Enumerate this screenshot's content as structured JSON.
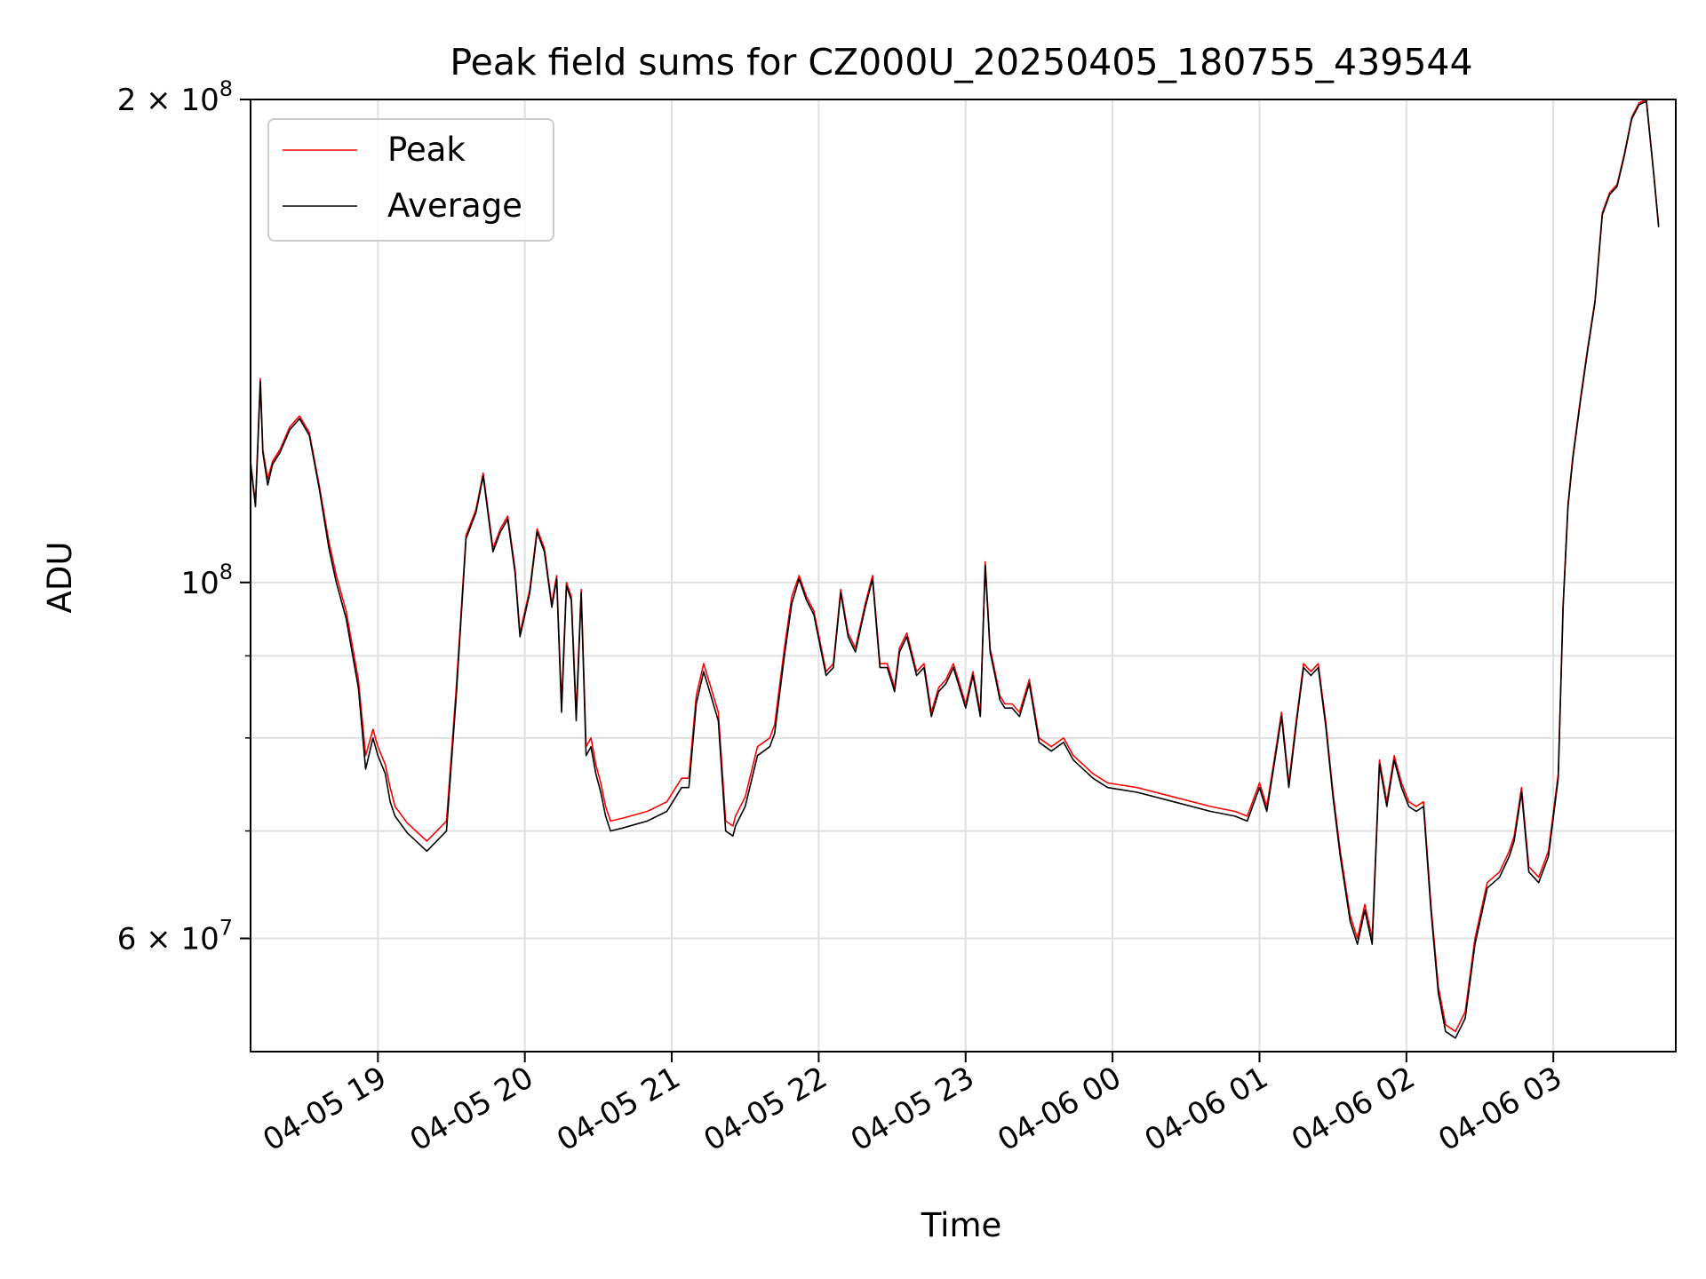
{
  "chart_data": {
    "type": "line",
    "title": "Peak field sums for CZ000U_20250405_180755_439544",
    "xlabel": "Time",
    "ylabel": "ADU",
    "yscale": "log",
    "ylim": [
      51000000,
      200000000
    ],
    "xlim": [
      "2025-04-05 18:08",
      "2025-04-06 03:50"
    ],
    "grid": true,
    "legend": "top-left",
    "x_ticks": [
      {
        "label": "04-05 19",
        "time": "2025-04-05 19:00"
      },
      {
        "label": "04-05 20",
        "time": "2025-04-05 20:00"
      },
      {
        "label": "04-05 21",
        "time": "2025-04-05 21:00"
      },
      {
        "label": "04-05 22",
        "time": "2025-04-05 22:00"
      },
      {
        "label": "04-05 23",
        "time": "2025-04-05 23:00"
      },
      {
        "label": "04-06 00",
        "time": "2025-04-06 00:00"
      },
      {
        "label": "04-06 01",
        "time": "2025-04-06 01:00"
      },
      {
        "label": "04-06 02",
        "time": "2025-04-06 02:00"
      },
      {
        "label": "04-06 03",
        "time": "2025-04-06 03:00"
      }
    ],
    "y_major_ticks": [
      {
        "value": 60000000,
        "mantissa": "6",
        "exponent": "7"
      },
      {
        "value": 100000000,
        "mantissa": "",
        "exponent": "8"
      },
      {
        "value": 200000000,
        "mantissa": "2",
        "exponent": "8"
      }
    ],
    "y_minor_grid": [
      70000000,
      80000000,
      90000000
    ],
    "times": [
      "2025-04-05 18:08",
      "2025-04-05 18:10",
      "2025-04-05 18:12",
      "2025-04-05 18:13",
      "2025-04-05 18:15",
      "2025-04-05 18:17",
      "2025-04-05 18:20",
      "2025-04-05 18:24",
      "2025-04-05 18:28",
      "2025-04-05 18:32",
      "2025-04-05 18:36",
      "2025-04-05 18:40",
      "2025-04-05 18:43",
      "2025-04-05 18:47",
      "2025-04-05 18:52",
      "2025-04-05 18:55",
      "2025-04-05 18:58",
      "2025-04-05 19:00",
      "2025-04-05 19:03",
      "2025-04-05 19:05",
      "2025-04-05 19:07",
      "2025-04-05 19:12",
      "2025-04-05 19:20",
      "2025-04-05 19:28",
      "2025-04-05 19:32",
      "2025-04-05 19:36",
      "2025-04-05 19:40",
      "2025-04-05 19:43",
      "2025-04-05 19:47",
      "2025-04-05 19:50",
      "2025-04-05 19:53",
      "2025-04-05 19:56",
      "2025-04-05 19:58",
      "2025-04-05 20:02",
      "2025-04-05 20:05",
      "2025-04-05 20:08",
      "2025-04-05 20:11",
      "2025-04-05 20:13",
      "2025-04-05 20:15",
      "2025-04-05 20:17",
      "2025-04-05 20:19",
      "2025-04-05 20:21",
      "2025-04-05 20:23",
      "2025-04-05 20:25",
      "2025-04-05 20:27",
      "2025-04-05 20:29",
      "2025-04-05 20:31",
      "2025-04-05 20:33",
      "2025-04-05 20:35",
      "2025-04-05 20:40",
      "2025-04-05 20:50",
      "2025-04-05 20:58",
      "2025-04-05 21:04",
      "2025-04-05 21:07",
      "2025-04-05 21:10",
      "2025-04-05 21:13",
      "2025-04-05 21:16",
      "2025-04-05 21:19",
      "2025-04-05 21:22",
      "2025-04-05 21:25",
      "2025-04-05 21:26",
      "2025-04-05 21:30",
      "2025-04-05 21:35",
      "2025-04-05 21:40",
      "2025-04-05 21:42",
      "2025-04-05 21:46",
      "2025-04-05 21:49",
      "2025-04-05 21:52",
      "2025-04-05 21:55",
      "2025-04-05 21:58",
      "2025-04-05 22:03",
      "2025-04-05 22:06",
      "2025-04-05 22:09",
      "2025-04-05 22:12",
      "2025-04-05 22:15",
      "2025-04-05 22:19",
      "2025-04-05 22:22",
      "2025-04-05 22:25",
      "2025-04-05 22:28",
      "2025-04-05 22:31",
      "2025-04-05 22:33",
      "2025-04-05 22:36",
      "2025-04-05 22:40",
      "2025-04-05 22:43",
      "2025-04-05 22:46",
      "2025-04-05 22:49",
      "2025-04-05 22:52",
      "2025-04-05 22:55",
      "2025-04-05 22:58",
      "2025-04-05 23:00",
      "2025-04-05 23:03",
      "2025-04-05 23:06",
      "2025-04-05 23:08",
      "2025-04-05 23:10",
      "2025-04-05 23:12",
      "2025-04-05 23:14",
      "2025-04-05 23:16",
      "2025-04-05 23:19",
      "2025-04-05 23:22",
      "2025-04-05 23:26",
      "2025-04-05 23:30",
      "2025-04-05 23:35",
      "2025-04-05 23:40",
      "2025-04-05 23:44",
      "2025-04-05 23:48",
      "2025-04-05 23:52",
      "2025-04-05 23:58",
      "2025-04-06 00:10",
      "2025-04-06 00:25",
      "2025-04-06 00:40",
      "2025-04-06 00:50",
      "2025-04-06 00:55",
      "2025-04-06 01:00",
      "2025-04-06 01:03",
      "2025-04-06 01:06",
      "2025-04-06 01:09",
      "2025-04-06 01:12",
      "2025-04-06 01:15",
      "2025-04-06 01:18",
      "2025-04-06 01:21",
      "2025-04-06 01:24",
      "2025-04-06 01:27",
      "2025-04-06 01:30",
      "2025-04-06 01:33",
      "2025-04-06 01:37",
      "2025-04-06 01:40",
      "2025-04-06 01:43",
      "2025-04-06 01:46",
      "2025-04-06 01:49",
      "2025-04-06 01:52",
      "2025-04-06 01:55",
      "2025-04-06 01:58",
      "2025-04-06 02:01",
      "2025-04-06 02:04",
      "2025-04-06 02:07",
      "2025-04-06 02:10",
      "2025-04-06 02:13",
      "2025-04-06 02:16",
      "2025-04-06 02:20",
      "2025-04-06 02:24",
      "2025-04-06 02:28",
      "2025-04-06 02:33",
      "2025-04-06 02:38",
      "2025-04-06 02:42",
      "2025-04-06 02:44",
      "2025-04-06 02:47",
      "2025-04-06 02:50",
      "2025-04-06 02:54",
      "2025-04-06 02:58",
      "2025-04-06 03:02",
      "2025-04-06 03:04",
      "2025-04-06 03:06",
      "2025-04-06 03:08",
      "2025-04-06 03:11",
      "2025-04-06 03:14",
      "2025-04-06 03:17",
      "2025-04-06 03:20",
      "2025-04-06 03:23",
      "2025-04-06 03:26",
      "2025-04-06 03:29",
      "2025-04-06 03:32",
      "2025-04-06 03:35",
      "2025-04-06 03:38",
      "2025-04-06 03:41",
      "2025-04-06 03:43",
      "2025-04-06 03:45",
      "2025-04-06 03:47",
      "2025-04-06 03:50"
    ],
    "series": [
      {
        "name": "Peak",
        "color": "#ff0000",
        "values": [
          119000000,
          112000000,
          134000000,
          121000000,
          116000000,
          119000000,
          121000000,
          125000000,
          127000000,
          124000000,
          115000000,
          106000000,
          101000000,
          96000000,
          87000000,
          78000000,
          81000000,
          79000000,
          77000000,
          74500000,
          72500000,
          70800000,
          69000000,
          71000000,
          86000000,
          107000000,
          111000000,
          117000000,
          105000000,
          108000000,
          110000000,
          102000000,
          93000000,
          99000000,
          108000000,
          105000000,
          97000000,
          101000000,
          84000000,
          100000000,
          98000000,
          83000000,
          99000000,
          79000000,
          80000000,
          77000000,
          75000000,
          72500000,
          71000000,
          71300000,
          72000000,
          73000000,
          75500000,
          75500000,
          85000000,
          89000000,
          86000000,
          83000000,
          71000000,
          70500000,
          71500000,
          73500000,
          79000000,
          80000000,
          81500000,
          91000000,
          98000000,
          101000000,
          98000000,
          96000000,
          88000000,
          89000000,
          99000000,
          93000000,
          91000000,
          97000000,
          101000000,
          89000000,
          89000000,
          86000000,
          91000000,
          93000000,
          88000000,
          89000000,
          83000000,
          86000000,
          87000000,
          89000000,
          86000000,
          84000000,
          88000000,
          83000000,
          103000000,
          91000000,
          88000000,
          85000000,
          84000000,
          84000000,
          83000000,
          87000000,
          80000000,
          79000000,
          80000000,
          78000000,
          77000000,
          76000000,
          75000000,
          74500000,
          73500000,
          72500000,
          72000000,
          71500000,
          75000000,
          72500000,
          77500000,
          83000000,
          75000000,
          82000000,
          89000000,
          88000000,
          89000000,
          82000000,
          74000000,
          68000000,
          62000000,
          60000000,
          63000000,
          60000000,
          77500000,
          73000000,
          78000000,
          75000000,
          73000000,
          72500000,
          73000000,
          63000000,
          56000000,
          53000000,
          52500000,
          54000000,
          60000000,
          65000000,
          66000000,
          68000000,
          69500000,
          74500000,
          66500000,
          65500000,
          68000000,
          76000000,
          97000000,
          112000000,
          120000000,
          130000000,
          140000000,
          150000000,
          170000000,
          175000000,
          177000000,
          185000000,
          195000000,
          199000000,
          200000000,
          180000000,
          167000000
        ]
      },
      {
        "name": "Average",
        "color": "#000000",
        "values": [
          118500000,
          111500000,
          133500000,
          120500000,
          115000000,
          118500000,
          120500000,
          124500000,
          126500000,
          123500000,
          114500000,
          105000000,
          100000000,
          95000000,
          86000000,
          76500000,
          80000000,
          78000000,
          76000000,
          73000000,
          71500000,
          69800000,
          68000000,
          70000000,
          85000000,
          106500000,
          110500000,
          116500000,
          104500000,
          107500000,
          109500000,
          101500000,
          92500000,
          98500000,
          107500000,
          104500000,
          96500000,
          100500000,
          83000000,
          99500000,
          97500000,
          82000000,
          98500000,
          78000000,
          79000000,
          76000000,
          74000000,
          71500000,
          70000000,
          70300000,
          71000000,
          72000000,
          74500000,
          74500000,
          84000000,
          88000000,
          85000000,
          82000000,
          70000000,
          69500000,
          70500000,
          72500000,
          78000000,
          79000000,
          80500000,
          90000000,
          97000000,
          100500000,
          97500000,
          95500000,
          87500000,
          88500000,
          98500000,
          92500000,
          90500000,
          96500000,
          100500000,
          88500000,
          88500000,
          85500000,
          90500000,
          92500000,
          87500000,
          88500000,
          82500000,
          85500000,
          86500000,
          88500000,
          85500000,
          83500000,
          87500000,
          82500000,
          102500000,
          90500000,
          87500000,
          84500000,
          83500000,
          83500000,
          82500000,
          86500000,
          79500000,
          78500000,
          79500000,
          77500000,
          76500000,
          75500000,
          74500000,
          74000000,
          73000000,
          72000000,
          71500000,
          71000000,
          74500000,
          72000000,
          77000000,
          82500000,
          74500000,
          81500000,
          88500000,
          87500000,
          88500000,
          81500000,
          73500000,
          67500000,
          61500000,
          59500000,
          62500000,
          59500000,
          77000000,
          72500000,
          77500000,
          74500000,
          72500000,
          72000000,
          72500000,
          62500000,
          55500000,
          52500000,
          52000000,
          53500000,
          59500000,
          64500000,
          65500000,
          67500000,
          69000000,
          74000000,
          66000000,
          65000000,
          67500000,
          75500000,
          96500000,
          111500000,
          119500000,
          129500000,
          139500000,
          149500000,
          169500000,
          174500000,
          176500000,
          184500000,
          194500000,
          198500000,
          199500000,
          179500000,
          166500000
        ]
      }
    ]
  }
}
